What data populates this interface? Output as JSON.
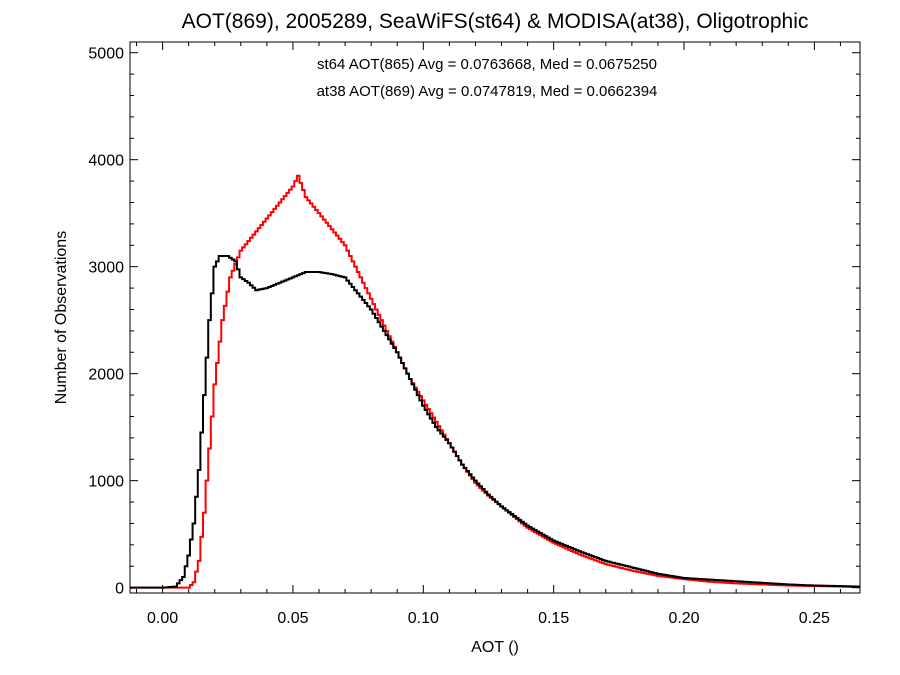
{
  "chart_data": {
    "type": "line",
    "step": true,
    "title": "AOT(869), 2005289, SeaWiFS(st64) & MODISA(at38), Oligotrophic",
    "xlabel": "AOT ()",
    "ylabel": "Number of Observations",
    "xlim": [
      -0.0125,
      0.2675
    ],
    "ylim": [
      -50,
      5100
    ],
    "xticks": [
      0.0,
      0.05,
      0.1,
      0.15,
      0.2,
      0.25
    ],
    "xtick_labels": [
      "0.00",
      "0.05",
      "0.10",
      "0.15",
      "0.20",
      "0.25"
    ],
    "yticks": [
      0,
      1000,
      2000,
      3000,
      4000,
      5000
    ],
    "ytick_labels": [
      "0",
      "1000",
      "2000",
      "3000",
      "4000",
      "5000"
    ],
    "grid": false,
    "annotations": [
      {
        "text": "st64 AOT(865) Avg = 0.0763668, Med = 0.0675250",
        "color": "#000000"
      },
      {
        "text": "at38 AOT(869) Avg = 0.0747819, Med = 0.0662394",
        "color": "#ff0000"
      }
    ],
    "series": [
      {
        "color": "#000000",
        "x": [
          -0.0125,
          0.0,
          0.005,
          0.008,
          0.01,
          0.012,
          0.014,
          0.016,
          0.018,
          0.02,
          0.022,
          0.025,
          0.028,
          0.03,
          0.033,
          0.036,
          0.04,
          0.045,
          0.05,
          0.055,
          0.06,
          0.065,
          0.07,
          0.075,
          0.08,
          0.085,
          0.09,
          0.095,
          0.1,
          0.105,
          0.11,
          0.115,
          0.12,
          0.125,
          0.13,
          0.135,
          0.14,
          0.15,
          0.16,
          0.17,
          0.18,
          0.19,
          0.2,
          0.21,
          0.22,
          0.23,
          0.24,
          0.25,
          0.26,
          0.2675
        ],
        "y": [
          0,
          0,
          10,
          100,
          300,
          600,
          1100,
          1800,
          2500,
          3000,
          3100,
          3100,
          3050,
          2900,
          2850,
          2780,
          2800,
          2850,
          2900,
          2950,
          2950,
          2930,
          2900,
          2750,
          2600,
          2400,
          2200,
          1950,
          1700,
          1500,
          1350,
          1150,
          1000,
          870,
          760,
          670,
          580,
          440,
          340,
          250,
          190,
          130,
          90,
          75,
          60,
          45,
          30,
          20,
          15,
          10
        ]
      },
      {
        "color": "#ff0000",
        "x": [
          -0.0125,
          0.0,
          0.01,
          0.012,
          0.014,
          0.016,
          0.018,
          0.02,
          0.023,
          0.026,
          0.03,
          0.035,
          0.04,
          0.045,
          0.05,
          0.052,
          0.055,
          0.06,
          0.065,
          0.07,
          0.075,
          0.08,
          0.085,
          0.09,
          0.095,
          0.1,
          0.105,
          0.11,
          0.115,
          0.12,
          0.125,
          0.13,
          0.135,
          0.14,
          0.15,
          0.16,
          0.17,
          0.18,
          0.19,
          0.2,
          0.21,
          0.22,
          0.23,
          0.24,
          0.25,
          0.26,
          0.2675
        ],
        "y": [
          0,
          0,
          0,
          50,
          250,
          700,
          1300,
          1900,
          2500,
          2900,
          3150,
          3300,
          3450,
          3600,
          3750,
          3850,
          3650,
          3500,
          3350,
          3200,
          2950,
          2700,
          2450,
          2200,
          1950,
          1750,
          1550,
          1350,
          1150,
          980,
          860,
          760,
          660,
          560,
          420,
          310,
          220,
          160,
          110,
          80,
          55,
          40,
          30,
          20,
          15,
          10,
          5
        ]
      }
    ]
  }
}
